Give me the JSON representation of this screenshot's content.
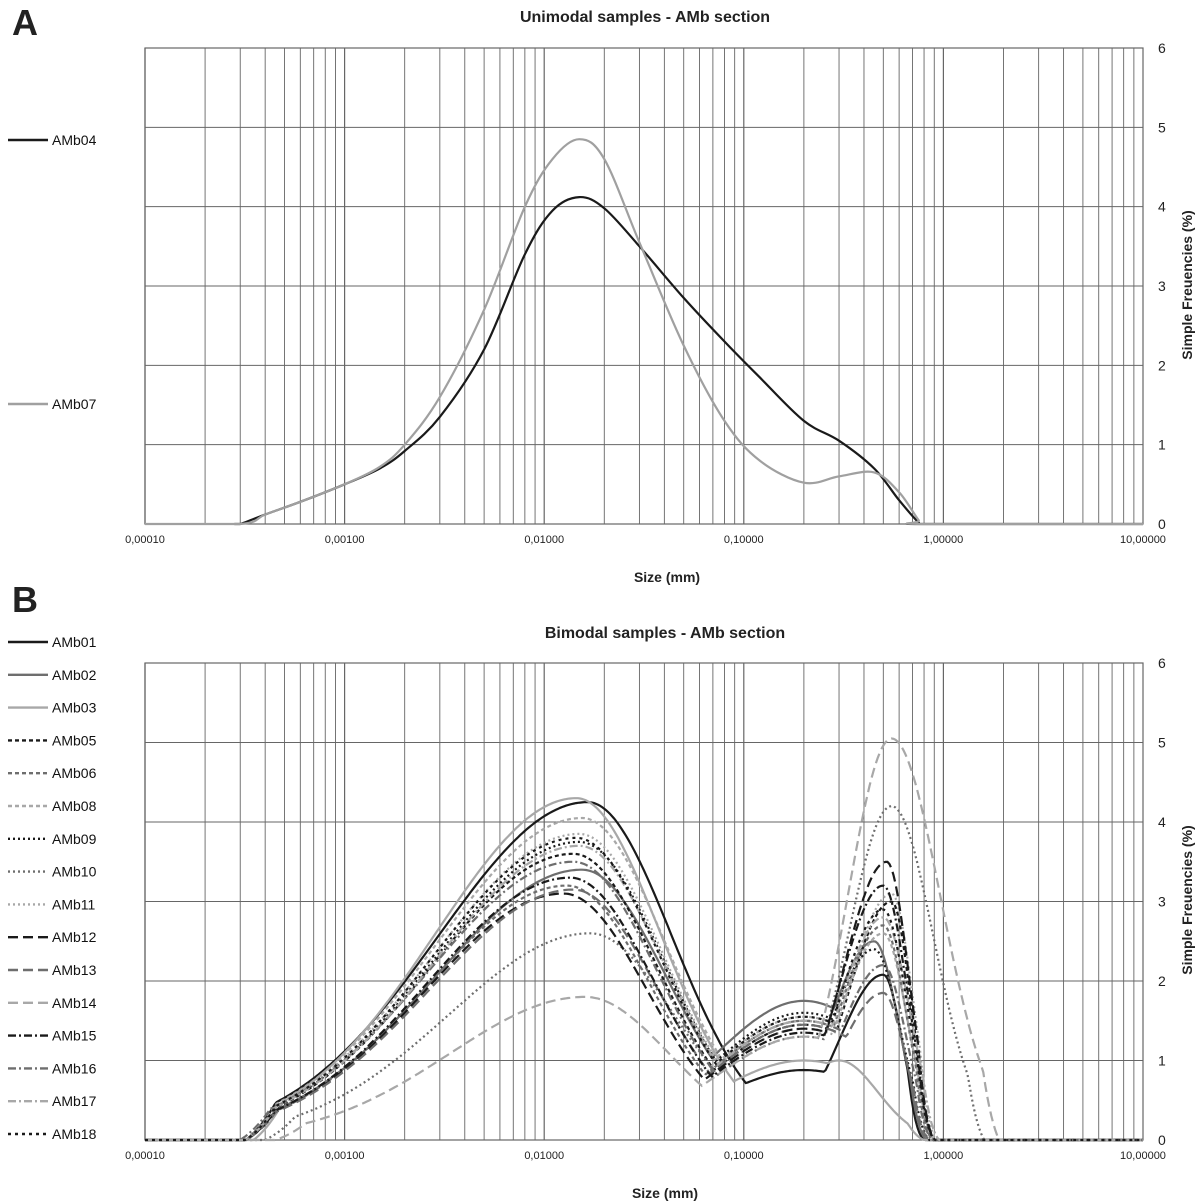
{
  "chart_data": [
    {
      "panel": "A",
      "type": "line",
      "title": "Unimodal samples - AMb section",
      "xlabel": "Size (mm)",
      "ylabel": "Simple Freuencies (%)",
      "xscale": "log",
      "xlim": [
        0.0001,
        10
      ],
      "ylim": [
        0,
        6
      ],
      "x_tick_labels": [
        "0,00010",
        "0,00100",
        "0,01000",
        "0,10000",
        "1,00000",
        "10,00000"
      ],
      "y_tick_labels": [
        "0",
        "1",
        "2",
        "3",
        "4",
        "5",
        "6"
      ],
      "grid": true,
      "legend_position": "left",
      "series": [
        {
          "name": "AMb04",
          "color": "#1a1a1a",
          "dash": "solid",
          "points": [
            [
              0.00028,
              0
            ],
            [
              0.0003,
              0
            ],
            [
              0.0004,
              0.12
            ],
            [
              0.0006,
              0.28
            ],
            [
              0.001,
              0.5
            ],
            [
              0.0015,
              0.7
            ],
            [
              0.002,
              0.92
            ],
            [
              0.003,
              1.35
            ],
            [
              0.005,
              2.2
            ],
            [
              0.008,
              3.4
            ],
            [
              0.011,
              3.95
            ],
            [
              0.015,
              4.12
            ],
            [
              0.02,
              3.98
            ],
            [
              0.03,
              3.5
            ],
            [
              0.05,
              2.85
            ],
            [
              0.08,
              2.3
            ],
            [
              0.12,
              1.85
            ],
            [
              0.2,
              1.3
            ],
            [
              0.3,
              1.05
            ],
            [
              0.45,
              0.7
            ],
            [
              0.6,
              0.3
            ],
            [
              0.75,
              0.02
            ],
            [
              0.8,
              0
            ],
            [
              10,
              0
            ]
          ]
        },
        {
          "name": "AMb07",
          "color": "#a0a0a0",
          "dash": "solid",
          "points": [
            [
              0.0001,
              0
            ],
            [
              0.0003,
              0
            ],
            [
              0.0004,
              0.12
            ],
            [
              0.0006,
              0.28
            ],
            [
              0.001,
              0.5
            ],
            [
              0.0015,
              0.72
            ],
            [
              0.002,
              1.0
            ],
            [
              0.003,
              1.6
            ],
            [
              0.005,
              2.7
            ],
            [
              0.008,
              4.0
            ],
            [
              0.011,
              4.6
            ],
            [
              0.015,
              4.85
            ],
            [
              0.02,
              4.6
            ],
            [
              0.03,
              3.55
            ],
            [
              0.05,
              2.25
            ],
            [
              0.08,
              1.3
            ],
            [
              0.12,
              0.8
            ],
            [
              0.2,
              0.52
            ],
            [
              0.3,
              0.6
            ],
            [
              0.45,
              0.65
            ],
            [
              0.6,
              0.4
            ],
            [
              0.75,
              0.05
            ],
            [
              0.8,
              0
            ],
            [
              10,
              0
            ]
          ]
        }
      ]
    },
    {
      "panel": "B",
      "type": "line",
      "title": "Bimodal samples - AMb section",
      "xlabel": "Size (mm)",
      "ylabel": "Simple Freuencies (%)",
      "xscale": "log",
      "xlim": [
        0.0001,
        10
      ],
      "ylim": [
        0,
        6
      ],
      "x_tick_labels": [
        "0,00010",
        "0,00100",
        "0,01000",
        "0,10000",
        "1,00000",
        "10,00000"
      ],
      "y_tick_labels": [
        "0",
        "1",
        "2",
        "3",
        "4",
        "5",
        "6"
      ],
      "grid": true,
      "legend_position": "left",
      "series": [
        {
          "name": "AMb01",
          "color": "#1a1a1a",
          "dash": "solid",
          "peak1": 4.25,
          "x1": 0.0165,
          "valley": 0.88,
          "peak2": 2.08,
          "x2": 0.5,
          "start": 0.00032,
          "end": 0.8
        },
        {
          "name": "AMb02",
          "color": "#6e6e6e",
          "dash": "solid",
          "peak1": 3.4,
          "x1": 0.0155,
          "valley": 1.75,
          "peak2": 2.5,
          "x2": 0.45,
          "start": 0.00032,
          "end": 0.82
        },
        {
          "name": "AMb03",
          "color": "#a8a8a8",
          "dash": "solid",
          "peak1": 4.3,
          "x1": 0.0145,
          "valley": 1.0,
          "peak2": 1.0,
          "x2": 0.3,
          "start": 0.00035,
          "end": 0.8
        },
        {
          "name": "AMb05",
          "color": "#1a1a1a",
          "dash": "4,3",
          "peak1": 3.6,
          "x1": 0.014,
          "valley": 1.45,
          "peak2": 3.0,
          "x2": 0.55,
          "start": 0.00032,
          "end": 0.88
        },
        {
          "name": "AMb06",
          "color": "#6e6e6e",
          "dash": "4,3",
          "peak1": 3.2,
          "x1": 0.013,
          "valley": 1.5,
          "peak2": 2.7,
          "x2": 0.5,
          "start": 0.00032,
          "end": 0.88
        },
        {
          "name": "AMb08",
          "color": "#a8a8a8",
          "dash": "4,3",
          "peak1": 4.05,
          "x1": 0.0155,
          "valley": 1.55,
          "peak2": 2.6,
          "x2": 0.5,
          "start": 0.00032,
          "end": 0.9
        },
        {
          "name": "AMb09",
          "color": "#1a1a1a",
          "dash": "2,3",
          "peak1": 3.75,
          "x1": 0.015,
          "valley": 1.6,
          "peak2": 2.4,
          "x2": 0.45,
          "start": 0.00032,
          "end": 0.85
        },
        {
          "name": "AMb10",
          "color": "#6e6e6e",
          "dash": "2,3",
          "peak1": 2.6,
          "x1": 0.017,
          "valley": 1.3,
          "peak2": 4.2,
          "x2": 0.55,
          "start": 0.0004,
          "end": 1.6
        },
        {
          "name": "AMb11",
          "color": "#a8a8a8",
          "dash": "2,3",
          "peak1": 3.85,
          "x1": 0.015,
          "valley": 1.4,
          "peak2": 3.1,
          "x2": 0.55,
          "start": 0.00032,
          "end": 0.92
        },
        {
          "name": "AMb12",
          "color": "#1a1a1a",
          "dash": "10,5",
          "peak1": 3.1,
          "x1": 0.0125,
          "valley": 1.4,
          "peak2": 3.5,
          "x2": 0.52,
          "start": 0.00032,
          "end": 0.9
        },
        {
          "name": "AMb13",
          "color": "#6e6e6e",
          "dash": "10,5",
          "peak1": 3.15,
          "x1": 0.014,
          "valley": 1.45,
          "peak2": 1.85,
          "x2": 0.5,
          "start": 0.00032,
          "end": 0.85
        },
        {
          "name": "AMb14",
          "color": "#a8a8a8",
          "dash": "10,5",
          "peak1": 1.8,
          "x1": 0.016,
          "valley": 1.3,
          "peak2": 5.05,
          "x2": 0.55,
          "start": 0.00045,
          "end": 1.9
        },
        {
          "name": "AMb15",
          "color": "#1a1a1a",
          "dash": "8,3,2,3",
          "peak1": 3.3,
          "x1": 0.0135,
          "valley": 1.35,
          "peak2": 3.2,
          "x2": 0.5,
          "start": 0.00032,
          "end": 0.9
        },
        {
          "name": "AMb16",
          "color": "#6e6e6e",
          "dash": "8,3,2,3",
          "peak1": 3.5,
          "x1": 0.014,
          "valley": 1.5,
          "peak2": 2.2,
          "x2": 0.5,
          "start": 0.0003,
          "end": 0.88
        },
        {
          "name": "AMb17",
          "color": "#a8a8a8",
          "dash": "8,3,2,3",
          "peak1": 3.7,
          "x1": 0.015,
          "valley": 1.5,
          "peak2": 2.8,
          "x2": 0.5,
          "start": 0.00032,
          "end": 0.95
        },
        {
          "name": "AMb18",
          "color": "#1a1a1a",
          "dash": "3,4",
          "peak1": 3.8,
          "x1": 0.0145,
          "valley": 1.55,
          "peak2": 2.9,
          "x2": 0.5,
          "start": 0.00032,
          "end": 0.9
        }
      ]
    }
  ],
  "panels": [
    {
      "letter": "A"
    },
    {
      "letter": "B"
    }
  ]
}
